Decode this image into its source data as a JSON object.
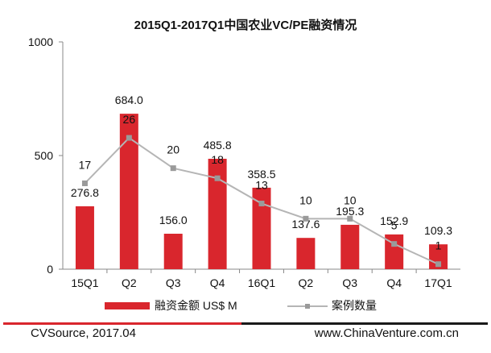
{
  "chart_data": {
    "type": "bar",
    "title": "2015Q1-2017Q1中国农业VC/PE融资情况",
    "categories": [
      "15Q1",
      "Q2",
      "Q3",
      "Q4",
      "16Q1",
      "Q2",
      "Q3",
      "Q4",
      "17Q1"
    ],
    "yticks": [
      "0",
      "500",
      "1000"
    ],
    "ylim": [
      0,
      1000
    ],
    "grid": false,
    "legend_position": "bottom",
    "series": [
      {
        "name": "融资金额 US$ M",
        "type": "bar",
        "color": "#d9262d",
        "values": [
          276.8,
          684.0,
          156.0,
          485.8,
          358.5,
          137.6,
          195.3,
          152.9,
          109.3
        ],
        "labels": [
          "276.8",
          "684.0",
          "156.0",
          "485.8",
          "358.5",
          "137.6",
          "195.3",
          "152.9",
          "109.3"
        ]
      },
      {
        "name": "案例数量",
        "type": "line",
        "color": "#b0b0b0",
        "values": [
          17,
          26,
          20,
          18,
          13,
          10,
          10,
          5,
          1
        ],
        "labels": [
          "17",
          "26",
          "20",
          "18",
          "13",
          "10",
          "10",
          "5",
          "1"
        ]
      }
    ]
  },
  "footer": {
    "source": "CVSource, 2017.04",
    "website": "www.ChinaVenture.com.cn"
  }
}
